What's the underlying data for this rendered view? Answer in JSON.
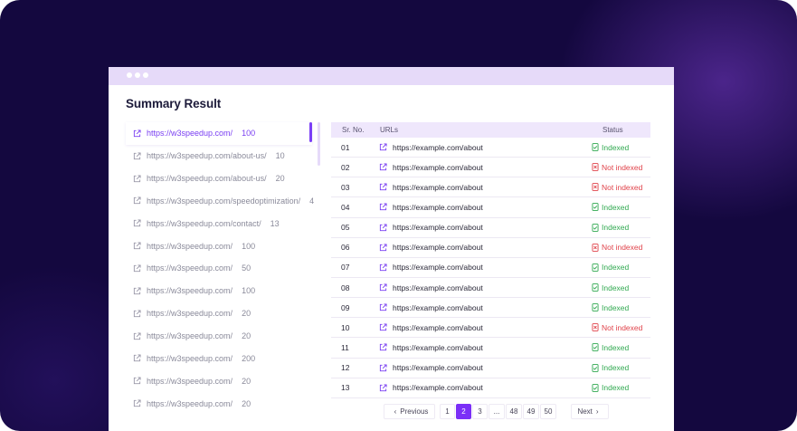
{
  "window": {
    "title": "Summary Result"
  },
  "left_list": [
    {
      "url": "https://w3speedup.com/",
      "count": "100",
      "active": true
    },
    {
      "url": "https://w3speedup.com/about-us/",
      "count": "10"
    },
    {
      "url": "https://w3speedup.com/about-us/",
      "count": "20"
    },
    {
      "url": "https://w3speedup.com/speedoptimization/",
      "count": "4"
    },
    {
      "url": "https://w3speedup.com/contact/",
      "count": "13"
    },
    {
      "url": "https://w3speedup.com/",
      "count": "100"
    },
    {
      "url": "https://w3speedup.com/",
      "count": "50"
    },
    {
      "url": "https://w3speedup.com/",
      "count": "100"
    },
    {
      "url": "https://w3speedup.com/",
      "count": "20"
    },
    {
      "url": "https://w3speedup.com/",
      "count": "20"
    },
    {
      "url": "https://w3speedup.com/",
      "count": "200"
    },
    {
      "url": "https://w3speedup.com/",
      "count": "20"
    },
    {
      "url": "https://w3speedup.com/",
      "count": "20"
    }
  ],
  "table": {
    "headers": {
      "no": "Sr. No.",
      "url": "URLs",
      "status": "Status"
    },
    "rows": [
      {
        "no": "01",
        "url": "https://example.com/about",
        "status": "Indexed",
        "ok": true
      },
      {
        "no": "02",
        "url": "https://example.com/about",
        "status": "Not indexed",
        "ok": false
      },
      {
        "no": "03",
        "url": "https://example.com/about",
        "status": "Not indexed",
        "ok": false
      },
      {
        "no": "04",
        "url": "https://example.com/about",
        "status": "Indexed",
        "ok": true
      },
      {
        "no": "05",
        "url": "https://example.com/about",
        "status": "Indexed",
        "ok": true
      },
      {
        "no": "06",
        "url": "https://example.com/about",
        "status": "Not indexed",
        "ok": false
      },
      {
        "no": "07",
        "url": "https://example.com/about",
        "status": "Indexed",
        "ok": true
      },
      {
        "no": "08",
        "url": "https://example.com/about",
        "status": "Indexed",
        "ok": true
      },
      {
        "no": "09",
        "url": "https://example.com/about",
        "status": "Indexed",
        "ok": true
      },
      {
        "no": "10",
        "url": "https://example.com/about",
        "status": "Not indexed",
        "ok": false
      },
      {
        "no": "11",
        "url": "https://example.com/about",
        "status": "Indexed",
        "ok": true
      },
      {
        "no": "12",
        "url": "https://example.com/about",
        "status": "Indexed",
        "ok": true
      },
      {
        "no": "13",
        "url": "https://example.com/about",
        "status": "Indexed",
        "ok": true
      }
    ]
  },
  "pagination": {
    "prev_label": "Previous",
    "next_label": "Next",
    "pages": [
      "1",
      "2",
      "3",
      "...",
      "48",
      "49",
      "50"
    ],
    "current": "2"
  },
  "colors": {
    "accent": "#7b2ff7",
    "indexed": "#2fa84f",
    "not_indexed": "#e0434b",
    "background": "#14083f"
  }
}
